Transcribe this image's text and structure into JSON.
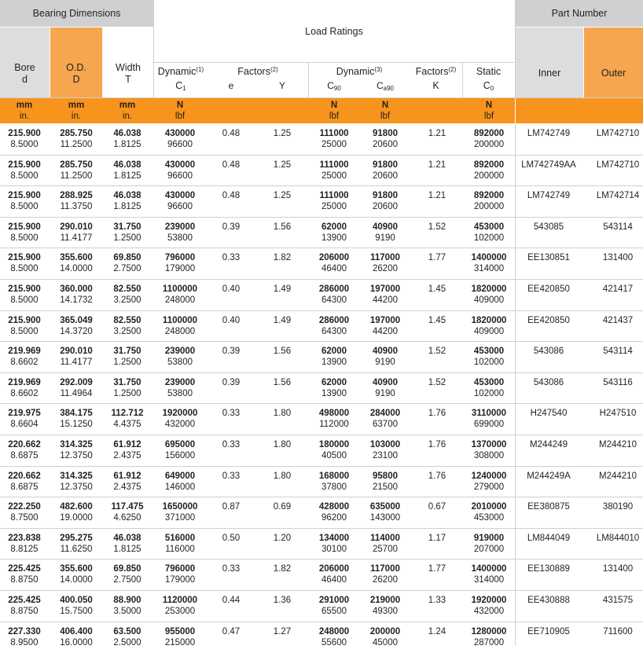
{
  "header": {
    "bearing_dimensions": "Bearing Dimensions",
    "load_ratings": "Load Ratings",
    "part_number": "Part Number",
    "bore": "Bore",
    "bore_sym": "d",
    "od": "O.D.",
    "od_sym": "D",
    "width": "Width",
    "width_sym": "T",
    "dynamic1": "Dynamic",
    "dynamic1_sup": "(1)",
    "dynamic1_sym": "C",
    "dynamic1_sub": "1",
    "factors2": "Factors",
    "factors2_sup": "(2)",
    "e": "e",
    "y": "Y",
    "dynamic3": "Dynamic",
    "dynamic3_sup": "(3)",
    "c90": "C",
    "c90_sub": "90",
    "ca90": "C",
    "ca90_sub": "a90",
    "factorsk": "Factors",
    "factorsk_sup": "(2)",
    "k": "K",
    "static": "Static",
    "static_sym": "C",
    "static_sub": "0",
    "inner": "Inner",
    "outer": "Outer"
  },
  "units": {
    "mm": "mm",
    "in": "in.",
    "n": "N",
    "lbf": "lbf"
  },
  "rows": [
    {
      "bore_mm": "215.900",
      "bore_in": "8.5000",
      "od_mm": "285.750",
      "od_in": "11.2500",
      "w_mm": "46.038",
      "w_in": "1.8125",
      "c1_n": "430000",
      "c1_lbf": "96600",
      "e": "0.48",
      "y": "1.25",
      "c90_n": "111000",
      "c90_lbf": "25000",
      "ca90_n": "91800",
      "ca90_lbf": "20600",
      "k": "1.21",
      "c0_n": "892000",
      "c0_lbf": "200000",
      "inner": "LM742749",
      "outer": "LM742710"
    },
    {
      "bore_mm": "215.900",
      "bore_in": "8.5000",
      "od_mm": "285.750",
      "od_in": "11.2500",
      "w_mm": "46.038",
      "w_in": "1.8125",
      "c1_n": "430000",
      "c1_lbf": "96600",
      "e": "0.48",
      "y": "1.25",
      "c90_n": "111000",
      "c90_lbf": "25000",
      "ca90_n": "91800",
      "ca90_lbf": "20600",
      "k": "1.21",
      "c0_n": "892000",
      "c0_lbf": "200000",
      "inner": "LM742749AA",
      "outer": "LM742710"
    },
    {
      "bore_mm": "215.900",
      "bore_in": "8.5000",
      "od_mm": "288.925",
      "od_in": "11.3750",
      "w_mm": "46.038",
      "w_in": "1.8125",
      "c1_n": "430000",
      "c1_lbf": "96600",
      "e": "0.48",
      "y": "1.25",
      "c90_n": "111000",
      "c90_lbf": "25000",
      "ca90_n": "91800",
      "ca90_lbf": "20600",
      "k": "1.21",
      "c0_n": "892000",
      "c0_lbf": "200000",
      "inner": "LM742749",
      "outer": "LM742714"
    },
    {
      "bore_mm": "215.900",
      "bore_in": "8.5000",
      "od_mm": "290.010",
      "od_in": "11.4177",
      "w_mm": "31.750",
      "w_in": "1.2500",
      "c1_n": "239000",
      "c1_lbf": "53800",
      "e": "0.39",
      "y": "1.56",
      "c90_n": "62000",
      "c90_lbf": "13900",
      "ca90_n": "40900",
      "ca90_lbf": "9190",
      "k": "1.52",
      "c0_n": "453000",
      "c0_lbf": "102000",
      "inner": "543085",
      "outer": "543114"
    },
    {
      "bore_mm": "215.900",
      "bore_in": "8.5000",
      "od_mm": "355.600",
      "od_in": "14.0000",
      "w_mm": "69.850",
      "w_in": "2.7500",
      "c1_n": "796000",
      "c1_lbf": "179000",
      "e": "0.33",
      "y": "1.82",
      "c90_n": "206000",
      "c90_lbf": "46400",
      "ca90_n": "117000",
      "ca90_lbf": "26200",
      "k": "1.77",
      "c0_n": "1400000",
      "c0_lbf": "314000",
      "inner": "EE130851",
      "outer": "131400"
    },
    {
      "bore_mm": "215.900",
      "bore_in": "8.5000",
      "od_mm": "360.000",
      "od_in": "14.1732",
      "w_mm": "82.550",
      "w_in": "3.2500",
      "c1_n": "1100000",
      "c1_lbf": "248000",
      "e": "0.40",
      "y": "1.49",
      "c90_n": "286000",
      "c90_lbf": "64300",
      "ca90_n": "197000",
      "ca90_lbf": "44200",
      "k": "1.45",
      "c0_n": "1820000",
      "c0_lbf": "409000",
      "inner": "EE420850",
      "outer": "421417"
    },
    {
      "bore_mm": "215.900",
      "bore_in": "8.5000",
      "od_mm": "365.049",
      "od_in": "14.3720",
      "w_mm": "82.550",
      "w_in": "3.2500",
      "c1_n": "1100000",
      "c1_lbf": "248000",
      "e": "0.40",
      "y": "1.49",
      "c90_n": "286000",
      "c90_lbf": "64300",
      "ca90_n": "197000",
      "ca90_lbf": "44200",
      "k": "1.45",
      "c0_n": "1820000",
      "c0_lbf": "409000",
      "inner": "EE420850",
      "outer": "421437"
    },
    {
      "bore_mm": "219.969",
      "bore_in": "8.6602",
      "od_mm": "290.010",
      "od_in": "11.4177",
      "w_mm": "31.750",
      "w_in": "1.2500",
      "c1_n": "239000",
      "c1_lbf": "53800",
      "e": "0.39",
      "y": "1.56",
      "c90_n": "62000",
      "c90_lbf": "13900",
      "ca90_n": "40900",
      "ca90_lbf": "9190",
      "k": "1.52",
      "c0_n": "453000",
      "c0_lbf": "102000",
      "inner": "543086",
      "outer": "543114"
    },
    {
      "bore_mm": "219.969",
      "bore_in": "8.6602",
      "od_mm": "292.009",
      "od_in": "11.4964",
      "w_mm": "31.750",
      "w_in": "1.2500",
      "c1_n": "239000",
      "c1_lbf": "53800",
      "e": "0.39",
      "y": "1.56",
      "c90_n": "62000",
      "c90_lbf": "13900",
      "ca90_n": "40900",
      "ca90_lbf": "9190",
      "k": "1.52",
      "c0_n": "453000",
      "c0_lbf": "102000",
      "inner": "543086",
      "outer": "543116"
    },
    {
      "bore_mm": "219.975",
      "bore_in": "8.6604",
      "od_mm": "384.175",
      "od_in": "15.1250",
      "w_mm": "112.712",
      "w_in": "4.4375",
      "c1_n": "1920000",
      "c1_lbf": "432000",
      "e": "0.33",
      "y": "1.80",
      "c90_n": "498000",
      "c90_lbf": "112000",
      "ca90_n": "284000",
      "ca90_lbf": "63700",
      "k": "1.76",
      "c0_n": "3110000",
      "c0_lbf": "699000",
      "inner": "H247540",
      "outer": "H247510"
    },
    {
      "bore_mm": "220.662",
      "bore_in": "8.6875",
      "od_mm": "314.325",
      "od_in": "12.3750",
      "w_mm": "61.912",
      "w_in": "2.4375",
      "c1_n": "695000",
      "c1_lbf": "156000",
      "e": "0.33",
      "y": "1.80",
      "c90_n": "180000",
      "c90_lbf": "40500",
      "ca90_n": "103000",
      "ca90_lbf": "23100",
      "k": "1.76",
      "c0_n": "1370000",
      "c0_lbf": "308000",
      "inner": "M244249",
      "outer": "M244210"
    },
    {
      "bore_mm": "220.662",
      "bore_in": "8.6875",
      "od_mm": "314.325",
      "od_in": "12.3750",
      "w_mm": "61.912",
      "w_in": "2.4375",
      "c1_n": "649000",
      "c1_lbf": "146000",
      "e": "0.33",
      "y": "1.80",
      "c90_n": "168000",
      "c90_lbf": "37800",
      "ca90_n": "95800",
      "ca90_lbf": "21500",
      "k": "1.76",
      "c0_n": "1240000",
      "c0_lbf": "279000",
      "inner": "M244249A",
      "outer": "M244210"
    },
    {
      "bore_mm": "222.250",
      "bore_in": "8.7500",
      "od_mm": "482.600",
      "od_in": "19.0000",
      "w_mm": "117.475",
      "w_in": "4.6250",
      "c1_n": "1650000",
      "c1_lbf": "371000",
      "e": "0.87",
      "y": "0.69",
      "c90_n": "428000",
      "c90_lbf": "96200",
      "ca90_n": "635000",
      "ca90_lbf": "143000",
      "k": "0.67",
      "c0_n": "2010000",
      "c0_lbf": "453000",
      "inner": "EE380875",
      "outer": "380190"
    },
    {
      "bore_mm": "223.838",
      "bore_in": "8.8125",
      "od_mm": "295.275",
      "od_in": "11.6250",
      "w_mm": "46.038",
      "w_in": "1.8125",
      "c1_n": "516000",
      "c1_lbf": "116000",
      "e": "0.50",
      "y": "1.20",
      "c90_n": "134000",
      "c90_lbf": "30100",
      "ca90_n": "114000",
      "ca90_lbf": "25700",
      "k": "1.17",
      "c0_n": "919000",
      "c0_lbf": "207000",
      "inner": "LM844049",
      "outer": "LM844010"
    },
    {
      "bore_mm": "225.425",
      "bore_in": "8.8750",
      "od_mm": "355.600",
      "od_in": "14.0000",
      "w_mm": "69.850",
      "w_in": "2.7500",
      "c1_n": "796000",
      "c1_lbf": "179000",
      "e": "0.33",
      "y": "1.82",
      "c90_n": "206000",
      "c90_lbf": "46400",
      "ca90_n": "117000",
      "ca90_lbf": "26200",
      "k": "1.77",
      "c0_n": "1400000",
      "c0_lbf": "314000",
      "inner": "EE130889",
      "outer": "131400"
    },
    {
      "bore_mm": "225.425",
      "bore_in": "8.8750",
      "od_mm": "400.050",
      "od_in": "15.7500",
      "w_mm": "88.900",
      "w_in": "3.5000",
      "c1_n": "1120000",
      "c1_lbf": "253000",
      "e": "0.44",
      "y": "1.36",
      "c90_n": "291000",
      "c90_lbf": "65500",
      "ca90_n": "219000",
      "ca90_lbf": "49300",
      "k": "1.33",
      "c0_n": "1920000",
      "c0_lbf": "432000",
      "inner": "EE430888",
      "outer": "431575"
    },
    {
      "bore_mm": "227.330",
      "bore_in": "8.9500",
      "od_mm": "406.400",
      "od_in": "16.0000",
      "w_mm": "63.500",
      "w_in": "2.5000",
      "c1_n": "955000",
      "c1_lbf": "215000",
      "e": "0.47",
      "y": "1.27",
      "c90_n": "248000",
      "c90_lbf": "55600",
      "ca90_n": "200000",
      "ca90_lbf": "45000",
      "k": "1.24",
      "c0_n": "1280000",
      "c0_lbf": "287000",
      "inner": "EE710905",
      "outer": "711600"
    }
  ]
}
